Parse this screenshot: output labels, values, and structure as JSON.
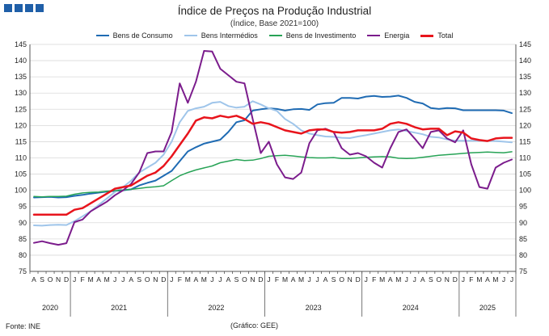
{
  "header": {
    "title": "Índice de Preços na Produção Industrial",
    "subtitle": "(Índice, Base 2021=100)"
  },
  "footer": {
    "source": "Fonte: INE",
    "credit": "(Gráfico: GEE)"
  },
  "chart_data": {
    "type": "line",
    "title": "Índice de Preços na Produção Industrial",
    "subtitle": "(Índice, Base 2021=100)",
    "ylim": [
      75,
      145
    ],
    "yticks": [
      75,
      80,
      85,
      90,
      95,
      100,
      105,
      110,
      115,
      120,
      125,
      130,
      135,
      140,
      145
    ],
    "grid": true,
    "legend_position": "top",
    "x": [
      "A",
      "S",
      "O",
      "N",
      "D",
      "J",
      "F",
      "M",
      "A",
      "M",
      "J",
      "J",
      "A",
      "S",
      "O",
      "N",
      "D",
      "J",
      "F",
      "M",
      "A",
      "M",
      "J",
      "J",
      "A",
      "S",
      "O",
      "N",
      "D",
      "J",
      "F",
      "M",
      "A",
      "M",
      "J",
      "J",
      "A",
      "S",
      "O",
      "N",
      "D",
      "J",
      "F",
      "M",
      "A",
      "M",
      "J",
      "J",
      "A",
      "S",
      "O",
      "N",
      "D",
      "J",
      "F",
      "M",
      "A",
      "M",
      "J",
      "J"
    ],
    "years": [
      {
        "label": "2020",
        "start": 0,
        "end": 4
      },
      {
        "label": "2021",
        "start": 5,
        "end": 16
      },
      {
        "label": "2022",
        "start": 17,
        "end": 28
      },
      {
        "label": "2023",
        "start": 29,
        "end": 40
      },
      {
        "label": "2024",
        "start": 41,
        "end": 52
      },
      {
        "label": "2025",
        "start": 53,
        "end": 59
      }
    ],
    "series": [
      {
        "name": "Bens de Consumo",
        "color": "#1f6bb3",
        "width": 2,
        "values": [
          97.8,
          97.9,
          98.0,
          97.8,
          97.9,
          98.3,
          98.6,
          99.0,
          99.3,
          99.6,
          99.8,
          100.0,
          100.3,
          101.5,
          102.3,
          103.0,
          104.5,
          106.0,
          109.0,
          112.0,
          113.3,
          114.4,
          115.0,
          115.6,
          118.0,
          121.0,
          121.6,
          124.6,
          125.0,
          125.3,
          125.1,
          124.6,
          125.0,
          125.1,
          124.8,
          126.5,
          126.9,
          127.0,
          128.5,
          128.5,
          128.3,
          128.9,
          129.1,
          128.8,
          128.9,
          129.2,
          128.5,
          127.3,
          126.8,
          125.4,
          125.1,
          125.4,
          125.3,
          124.7,
          124.7,
          124.7,
          124.7,
          124.7,
          124.6,
          123.8
        ]
      },
      {
        "name": "Bens Intermédios",
        "color": "#9fc5ea",
        "width": 2,
        "values": [
          89.2,
          89.1,
          89.3,
          89.4,
          89.3,
          90.5,
          92.0,
          93.5,
          95.5,
          97.5,
          99.5,
          101.0,
          103.0,
          105.5,
          107.0,
          108.5,
          111.0,
          115.0,
          121.0,
          124.5,
          125.3,
          125.8,
          127.0,
          127.3,
          126.0,
          125.5,
          125.8,
          127.5,
          126.5,
          125.3,
          124.5,
          122.0,
          120.5,
          118.5,
          117.5,
          117.0,
          116.6,
          116.5,
          116.2,
          116.1,
          116.6,
          117.0,
          117.5,
          118.0,
          118.5,
          118.8,
          118.3,
          117.8,
          117.3,
          116.5,
          116.3,
          115.7,
          115.3,
          115.3,
          115.3,
          115.3,
          115.3,
          115.2,
          115.0,
          114.8
        ]
      },
      {
        "name": "Bens de Investimento",
        "color": "#27a356",
        "width": 1.5,
        "values": [
          98.1,
          98.0,
          98.1,
          98.1,
          98.2,
          98.8,
          99.2,
          99.4,
          99.5,
          99.7,
          99.9,
          100.1,
          100.3,
          100.6,
          100.9,
          101.1,
          101.4,
          103.0,
          104.5,
          105.5,
          106.3,
          106.9,
          107.5,
          108.5,
          109.0,
          109.5,
          109.2,
          109.3,
          109.8,
          110.5,
          110.7,
          110.8,
          110.6,
          110.3,
          110.1,
          110.0,
          110.0,
          110.1,
          109.8,
          109.8,
          110.0,
          110.2,
          110.3,
          110.4,
          110.3,
          109.9,
          109.8,
          109.9,
          110.2,
          110.5,
          110.8,
          111.0,
          111.2,
          111.4,
          111.6,
          111.7,
          111.8,
          111.7,
          111.6,
          111.9
        ]
      },
      {
        "name": "Energia",
        "color": "#7b1c8c",
        "width": 2,
        "values": [
          83.8,
          84.3,
          83.7,
          83.2,
          83.7,
          90.2,
          91.0,
          93.5,
          95.0,
          96.5,
          98.5,
          100.0,
          102.0,
          105.5,
          111.5,
          112.0,
          112.0,
          118.0,
          133.0,
          127.0,
          133.5,
          143.0,
          142.8,
          137.5,
          135.5,
          133.5,
          133.0,
          122.0,
          111.5,
          115.0,
          108.0,
          104.0,
          103.5,
          105.5,
          114.5,
          118.5,
          119.0,
          118.0,
          113.0,
          111.0,
          111.5,
          110.5,
          108.5,
          107.0,
          113.0,
          118.0,
          118.8,
          116.0,
          113.0,
          118.0,
          118.5,
          116.0,
          114.8,
          118.5,
          108.0,
          101.0,
          100.5,
          107.0,
          108.5,
          109.5
        ]
      },
      {
        "name": "Total",
        "color": "#e8141c",
        "width": 2.5,
        "values": [
          92.5,
          92.5,
          92.5,
          92.5,
          92.5,
          94.0,
          94.5,
          96.0,
          97.5,
          99.0,
          100.5,
          101.0,
          101.5,
          103.0,
          104.5,
          105.5,
          107.5,
          110.5,
          114.0,
          117.5,
          121.5,
          122.5,
          122.2,
          123.0,
          122.5,
          123.0,
          122.0,
          120.5,
          121.0,
          120.5,
          119.5,
          118.5,
          118.0,
          117.5,
          118.5,
          118.8,
          118.8,
          118.0,
          117.8,
          118.0,
          118.5,
          118.5,
          118.5,
          119.0,
          120.5,
          121.0,
          120.5,
          119.5,
          118.8,
          119.0,
          119.0,
          117.0,
          118.2,
          117.8,
          116.0,
          115.5,
          115.2,
          116.0,
          116.2,
          116.2
        ]
      }
    ]
  }
}
